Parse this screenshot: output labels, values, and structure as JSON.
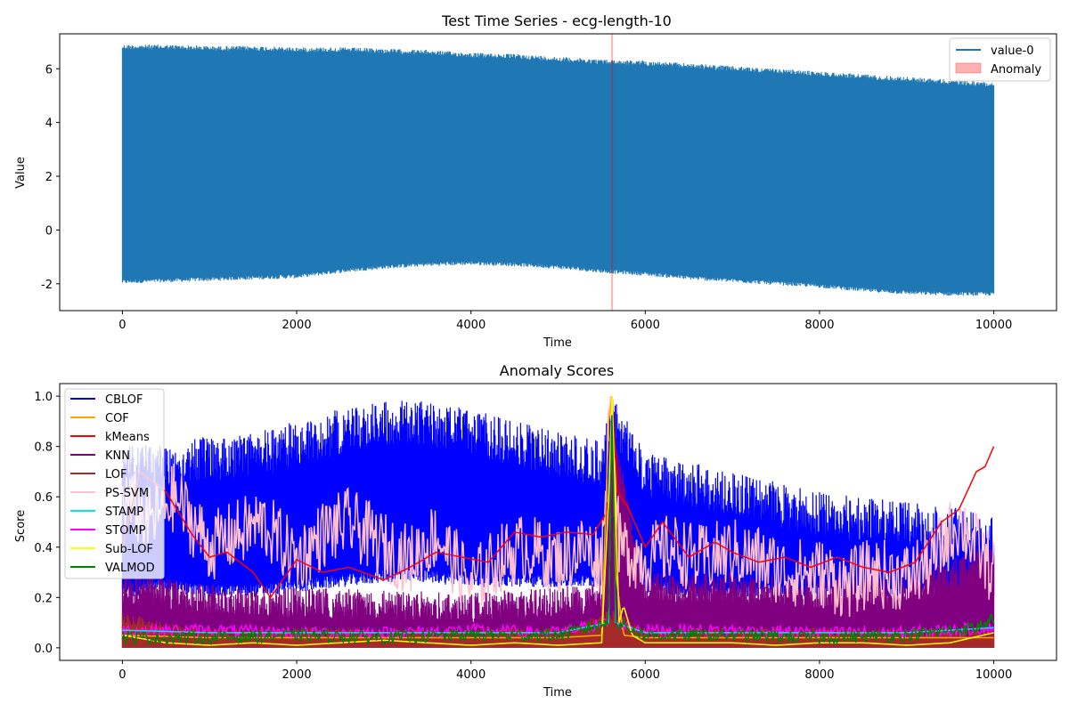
{
  "chart_data": [
    {
      "type": "line",
      "title": "Test Time Series - ecg-length-10",
      "xlabel": "Time",
      "ylabel": "Value",
      "xlim": [
        -720,
        10720
      ],
      "ylim": [
        -3.0,
        7.3
      ],
      "xticks": [
        0,
        2000,
        4000,
        6000,
        8000,
        10000
      ],
      "yticks": [
        -2,
        0,
        2,
        4,
        6
      ],
      "grid": false,
      "legend_position": "top-right",
      "series": [
        {
          "name": "value-0",
          "color": "#1f77b4",
          "style": "dense-oscillation",
          "x": [
            0,
            500,
            1000,
            1500,
            2000,
            2500,
            3000,
            3500,
            4000,
            4500,
            5000,
            5500,
            6000,
            6500,
            7000,
            7500,
            8000,
            8500,
            9000,
            9500,
            10000
          ],
          "upper": [
            6.9,
            6.9,
            6.85,
            6.85,
            6.8,
            6.8,
            6.75,
            6.7,
            6.6,
            6.55,
            6.45,
            6.35,
            6.3,
            6.2,
            6.1,
            6.0,
            5.9,
            5.8,
            5.7,
            5.6,
            5.5
          ],
          "lower": [
            -2.0,
            -1.95,
            -1.9,
            -1.85,
            -1.8,
            -1.6,
            -1.45,
            -1.35,
            -1.3,
            -1.35,
            -1.45,
            -1.6,
            -1.7,
            -1.85,
            -1.95,
            -2.05,
            -2.15,
            -2.3,
            -2.4,
            -2.45,
            -2.45
          ]
        }
      ],
      "anomaly": {
        "name": "Anomaly",
        "color": "#ff0000",
        "alpha": 0.3,
        "x_start": 5610,
        "x_end": 5630
      }
    },
    {
      "type": "line",
      "title": "Anomaly Scores",
      "xlabel": "Time",
      "ylabel": "Score",
      "xlim": [
        -720,
        10720
      ],
      "ylim": [
        -0.05,
        1.05
      ],
      "xticks": [
        0,
        2000,
        4000,
        6000,
        8000,
        10000
      ],
      "yticks": [
        0.0,
        0.2,
        0.4,
        0.6,
        0.8,
        1.0
      ],
      "grid": false,
      "legend_position": "top-left",
      "peak_x": 5620,
      "series": [
        {
          "name": "CBLOF",
          "color": "#0000ff",
          "style": "band",
          "x": [
            0,
            500,
            1000,
            1500,
            2000,
            2500,
            3000,
            3500,
            4000,
            4500,
            5000,
            5500,
            5620,
            6000,
            6500,
            7000,
            7500,
            8000,
            8500,
            9000,
            9500,
            10000
          ],
          "upper": [
            0.8,
            0.82,
            0.84,
            0.86,
            0.9,
            0.95,
            0.99,
            0.98,
            0.95,
            0.9,
            0.86,
            0.82,
            1.0,
            0.78,
            0.74,
            0.7,
            0.66,
            0.62,
            0.6,
            0.58,
            0.56,
            0.53
          ],
          "lower": [
            0.2,
            0.22,
            0.2,
            0.2,
            0.22,
            0.24,
            0.26,
            0.26,
            0.24,
            0.24,
            0.24,
            0.24,
            0.3,
            0.22,
            0.2,
            0.2,
            0.2,
            0.2,
            0.2,
            0.2,
            0.2,
            0.2
          ]
        },
        {
          "name": "COF",
          "color": "#ffa500",
          "style": "line",
          "x": [
            0,
            1000,
            2000,
            3000,
            4000,
            5000,
            5500,
            5580,
            5620,
            5660,
            5750,
            6000,
            7000,
            8000,
            9000,
            10000
          ],
          "y": [
            0.05,
            0.04,
            0.04,
            0.04,
            0.04,
            0.04,
            0.05,
            0.9,
            1.0,
            0.3,
            0.05,
            0.04,
            0.04,
            0.04,
            0.04,
            0.04
          ]
        },
        {
          "name": "kMeans",
          "color": "#ff0000",
          "style": "line",
          "x": [
            0,
            200,
            500,
            800,
            1000,
            1200,
            1500,
            1700,
            2000,
            2300,
            2600,
            3000,
            3300,
            3600,
            3900,
            4200,
            4500,
            4800,
            5100,
            5400,
            5580,
            5620,
            5680,
            5800,
            6000,
            6200,
            6500,
            6800,
            7000,
            7300,
            7600,
            7900,
            8200,
            8500,
            8800,
            9100,
            9400,
            9600,
            9800,
            9900,
            10000
          ],
          "y": [
            0.4,
            0.7,
            0.62,
            0.45,
            0.36,
            0.38,
            0.3,
            0.2,
            0.35,
            0.3,
            0.32,
            0.27,
            0.32,
            0.38,
            0.36,
            0.34,
            0.46,
            0.44,
            0.46,
            0.45,
            0.55,
            1.0,
            0.62,
            0.56,
            0.4,
            0.5,
            0.36,
            0.42,
            0.38,
            0.34,
            0.36,
            0.32,
            0.36,
            0.32,
            0.3,
            0.34,
            0.5,
            0.55,
            0.7,
            0.72,
            0.8
          ]
        },
        {
          "name": "KNN",
          "color": "#800080",
          "style": "band",
          "x": [
            0,
            1000,
            2000,
            3000,
            4000,
            5000,
            5500,
            5620,
            6000,
            7000,
            8000,
            9000,
            9500,
            10000
          ],
          "upper": [
            0.3,
            0.25,
            0.24,
            0.23,
            0.22,
            0.24,
            0.26,
            0.9,
            0.3,
            0.3,
            0.28,
            0.3,
            0.35,
            0.42
          ],
          "lower": [
            0.0,
            0.0,
            0.0,
            0.0,
            0.0,
            0.0,
            0.0,
            0.0,
            0.0,
            0.0,
            0.0,
            0.0,
            0.0,
            0.0
          ]
        },
        {
          "name": "LOF",
          "color": "#a52a2a",
          "style": "band",
          "x": [
            0,
            500,
            1000,
            2000,
            3000,
            4000,
            5000,
            5620,
            6000,
            7000,
            8000,
            9000,
            10000
          ],
          "upper": [
            0.14,
            0.1,
            0.08,
            0.08,
            0.08,
            0.08,
            0.08,
            0.15,
            0.08,
            0.08,
            0.08,
            0.08,
            0.08
          ],
          "lower": [
            0.0,
            0.0,
            0.0,
            0.0,
            0.0,
            0.0,
            0.0,
            0.0,
            0.0,
            0.0,
            0.0,
            0.0,
            0.0
          ]
        },
        {
          "name": "PS-SVM",
          "color": "#ffc0cb",
          "style": "noisy-line",
          "x": [
            0,
            300,
            600,
            1000,
            1300,
            1600,
            2000,
            2300,
            2600,
            3000,
            3300,
            3600,
            4000,
            4300,
            4600,
            5000,
            5300,
            5500,
            5600,
            5700,
            6000,
            6300,
            6600,
            7000,
            7300,
            7600,
            8000,
            8300,
            8600,
            9000,
            9300,
            9600,
            9800,
            10000
          ],
          "y": [
            0.6,
            0.5,
            0.6,
            0.4,
            0.45,
            0.5,
            0.35,
            0.45,
            0.5,
            0.4,
            0.35,
            0.45,
            0.25,
            0.35,
            0.4,
            0.35,
            0.4,
            0.35,
            1.0,
            0.4,
            0.35,
            0.4,
            0.35,
            0.38,
            0.35,
            0.3,
            0.3,
            0.25,
            0.3,
            0.28,
            0.35,
            0.5,
            0.4,
            0.3
          ]
        },
        {
          "name": "STAMP",
          "color": "#00e5ee",
          "style": "line",
          "x": [
            0,
            1000,
            2000,
            3000,
            4000,
            5000,
            5580,
            5620,
            5660,
            6000,
            7000,
            8000,
            9000,
            10000
          ],
          "y": [
            0.07,
            0.06,
            0.06,
            0.06,
            0.06,
            0.06,
            0.1,
            1.0,
            0.1,
            0.06,
            0.06,
            0.06,
            0.06,
            0.08
          ]
        },
        {
          "name": "STOMP",
          "color": "#ff00ff",
          "style": "noisy-line",
          "x": [
            0,
            1000,
            2000,
            3000,
            4000,
            5000,
            5580,
            5620,
            5660,
            6000,
            7000,
            8000,
            9000,
            10000
          ],
          "y": [
            0.07,
            0.07,
            0.06,
            0.06,
            0.07,
            0.06,
            0.1,
            1.0,
            0.1,
            0.07,
            0.07,
            0.06,
            0.06,
            0.08
          ]
        },
        {
          "name": "Sub-LOF",
          "color": "#ffff00",
          "style": "line",
          "x": [
            0,
            500,
            1000,
            1500,
            2000,
            2500,
            3000,
            3500,
            4000,
            4500,
            5000,
            5500,
            5580,
            5620,
            5700,
            5750,
            5850,
            6000,
            6500,
            7000,
            7500,
            8000,
            8500,
            9000,
            9500,
            10000
          ],
          "y": [
            0.05,
            0.02,
            0.01,
            0.02,
            0.01,
            0.02,
            0.03,
            0.02,
            0.01,
            0.02,
            0.01,
            0.02,
            0.6,
            1.0,
            0.1,
            0.17,
            0.05,
            0.02,
            0.02,
            0.02,
            0.01,
            0.02,
            0.02,
            0.01,
            0.02,
            0.06
          ]
        },
        {
          "name": "VALMOD",
          "color": "#008000",
          "style": "noisy-line",
          "x": [
            0,
            1000,
            2000,
            3000,
            4000,
            5000,
            5580,
            5620,
            5660,
            6000,
            7000,
            8000,
            9000,
            9800,
            10000
          ],
          "y": [
            0.04,
            0.04,
            0.05,
            0.04,
            0.05,
            0.05,
            0.1,
            1.0,
            0.1,
            0.05,
            0.05,
            0.04,
            0.05,
            0.08,
            0.12
          ]
        }
      ]
    }
  ]
}
